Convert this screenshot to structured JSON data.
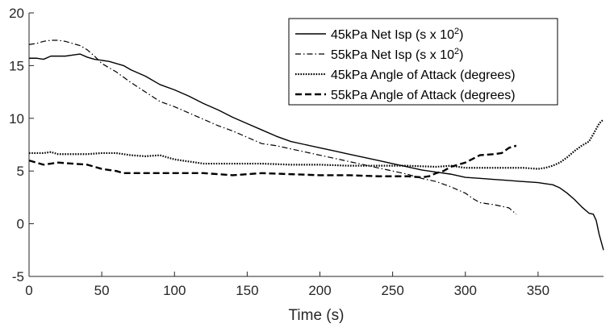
{
  "chart_data": {
    "type": "line",
    "title": "",
    "xlabel": "Time (s)",
    "ylabel": "",
    "xlim": [
      0,
      395
    ],
    "ylim": [
      -5,
      20
    ],
    "x_ticks": [
      0,
      50,
      100,
      150,
      200,
      250,
      300,
      350
    ],
    "y_ticks": [
      -5,
      0,
      5,
      10,
      15,
      20
    ],
    "grid": false,
    "legend_position": "top-right",
    "series": [
      {
        "name": "45kPa Net Isp (s x 10",
        "name_superscript": "2",
        "name_suffix": ")",
        "style": "solid",
        "color": "#000000",
        "points": [
          [
            0,
            15.7
          ],
          [
            5,
            15.7
          ],
          [
            10,
            15.6
          ],
          [
            15,
            15.9
          ],
          [
            20,
            15.9
          ],
          [
            25,
            15.9
          ],
          [
            30,
            16.0
          ],
          [
            35,
            16.1
          ],
          [
            40,
            15.8
          ],
          [
            45,
            15.6
          ],
          [
            50,
            15.5
          ],
          [
            55,
            15.4
          ],
          [
            60,
            15.2
          ],
          [
            65,
            15.0
          ],
          [
            70,
            14.6
          ],
          [
            80,
            14.0
          ],
          [
            90,
            13.2
          ],
          [
            100,
            12.7
          ],
          [
            110,
            12.1
          ],
          [
            120,
            11.4
          ],
          [
            130,
            10.8
          ],
          [
            140,
            10.1
          ],
          [
            150,
            9.5
          ],
          [
            160,
            8.9
          ],
          [
            170,
            8.3
          ],
          [
            180,
            7.8
          ],
          [
            190,
            7.5
          ],
          [
            200,
            7.2
          ],
          [
            210,
            6.9
          ],
          [
            220,
            6.6
          ],
          [
            230,
            6.3
          ],
          [
            240,
            6.0
          ],
          [
            250,
            5.7
          ],
          [
            260,
            5.4
          ],
          [
            270,
            5.1
          ],
          [
            280,
            4.9
          ],
          [
            290,
            4.7
          ],
          [
            300,
            4.4
          ],
          [
            310,
            4.3
          ],
          [
            320,
            4.2
          ],
          [
            330,
            4.1
          ],
          [
            340,
            4.0
          ],
          [
            350,
            3.9
          ],
          [
            355,
            3.8
          ],
          [
            360,
            3.7
          ],
          [
            365,
            3.4
          ],
          [
            370,
            2.9
          ],
          [
            375,
            2.3
          ],
          [
            380,
            1.6
          ],
          [
            385,
            1.0
          ],
          [
            388,
            0.9
          ],
          [
            390,
            0.3
          ],
          [
            392,
            -1.0
          ],
          [
            394,
            -2.0
          ],
          [
            395,
            -2.5
          ]
        ]
      },
      {
        "name": "55kPa Net Isp (s x 10",
        "name_superscript": "2",
        "name_suffix": ")",
        "style": "dashdot",
        "color": "#000000",
        "points": [
          [
            0,
            17.0
          ],
          [
            5,
            17.1
          ],
          [
            10,
            17.3
          ],
          [
            15,
            17.4
          ],
          [
            20,
            17.4
          ],
          [
            25,
            17.3
          ],
          [
            30,
            17.1
          ],
          [
            35,
            16.9
          ],
          [
            40,
            16.5
          ],
          [
            45,
            15.9
          ],
          [
            50,
            15.2
          ],
          [
            55,
            14.8
          ],
          [
            60,
            14.4
          ],
          [
            65,
            13.9
          ],
          [
            70,
            13.4
          ],
          [
            80,
            12.5
          ],
          [
            90,
            11.6
          ],
          [
            100,
            11.1
          ],
          [
            110,
            10.5
          ],
          [
            120,
            9.9
          ],
          [
            130,
            9.3
          ],
          [
            140,
            8.8
          ],
          [
            150,
            8.2
          ],
          [
            160,
            7.6
          ],
          [
            170,
            7.4
          ],
          [
            180,
            7.1
          ],
          [
            190,
            6.8
          ],
          [
            200,
            6.5
          ],
          [
            210,
            6.2
          ],
          [
            220,
            5.9
          ],
          [
            230,
            5.6
          ],
          [
            240,
            5.3
          ],
          [
            250,
            5.0
          ],
          [
            260,
            4.7
          ],
          [
            270,
            4.3
          ],
          [
            280,
            4.0
          ],
          [
            290,
            3.5
          ],
          [
            300,
            2.9
          ],
          [
            305,
            2.4
          ],
          [
            310,
            2.0
          ],
          [
            320,
            1.8
          ],
          [
            330,
            1.5
          ],
          [
            335,
            0.9
          ]
        ]
      },
      {
        "name": "45kPa Angle of Attack (degrees)",
        "style": "dotted",
        "color": "#000000",
        "points": [
          [
            0,
            6.7
          ],
          [
            5,
            6.7
          ],
          [
            10,
            6.7
          ],
          [
            15,
            6.8
          ],
          [
            20,
            6.6
          ],
          [
            30,
            6.6
          ],
          [
            40,
            6.6
          ],
          [
            50,
            6.7
          ],
          [
            60,
            6.7
          ],
          [
            70,
            6.5
          ],
          [
            80,
            6.4
          ],
          [
            90,
            6.5
          ],
          [
            100,
            6.1
          ],
          [
            110,
            5.9
          ],
          [
            120,
            5.7
          ],
          [
            140,
            5.7
          ],
          [
            160,
            5.7
          ],
          [
            180,
            5.6
          ],
          [
            200,
            5.6
          ],
          [
            220,
            5.5
          ],
          [
            240,
            5.5
          ],
          [
            260,
            5.5
          ],
          [
            280,
            5.4
          ],
          [
            290,
            5.5
          ],
          [
            300,
            5.3
          ],
          [
            310,
            5.3
          ],
          [
            320,
            5.3
          ],
          [
            330,
            5.3
          ],
          [
            340,
            5.3
          ],
          [
            350,
            5.2
          ],
          [
            355,
            5.3
          ],
          [
            360,
            5.5
          ],
          [
            365,
            5.8
          ],
          [
            370,
            6.3
          ],
          [
            375,
            6.9
          ],
          [
            380,
            7.4
          ],
          [
            385,
            7.8
          ],
          [
            388,
            8.5
          ],
          [
            390,
            9.0
          ],
          [
            392,
            9.5
          ],
          [
            395,
            9.9
          ]
        ]
      },
      {
        "name": "55kPa Angle of Attack (degrees)",
        "style": "dashed",
        "color": "#000000",
        "points": [
          [
            0,
            6.0
          ],
          [
            5,
            5.8
          ],
          [
            10,
            5.6
          ],
          [
            15,
            5.7
          ],
          [
            20,
            5.8
          ],
          [
            30,
            5.7
          ],
          [
            40,
            5.6
          ],
          [
            45,
            5.4
          ],
          [
            50,
            5.2
          ],
          [
            55,
            5.1
          ],
          [
            60,
            5.0
          ],
          [
            65,
            4.8
          ],
          [
            80,
            4.8
          ],
          [
            100,
            4.8
          ],
          [
            120,
            4.8
          ],
          [
            130,
            4.7
          ],
          [
            140,
            4.6
          ],
          [
            150,
            4.7
          ],
          [
            160,
            4.8
          ],
          [
            180,
            4.7
          ],
          [
            200,
            4.6
          ],
          [
            220,
            4.6
          ],
          [
            240,
            4.5
          ],
          [
            250,
            4.5
          ],
          [
            260,
            4.5
          ],
          [
            270,
            4.4
          ],
          [
            275,
            4.5
          ],
          [
            280,
            4.8
          ],
          [
            285,
            5.0
          ],
          [
            290,
            5.4
          ],
          [
            300,
            5.8
          ],
          [
            310,
            6.5
          ],
          [
            320,
            6.6
          ],
          [
            325,
            6.7
          ],
          [
            330,
            7.2
          ],
          [
            335,
            7.4
          ]
        ]
      }
    ]
  }
}
